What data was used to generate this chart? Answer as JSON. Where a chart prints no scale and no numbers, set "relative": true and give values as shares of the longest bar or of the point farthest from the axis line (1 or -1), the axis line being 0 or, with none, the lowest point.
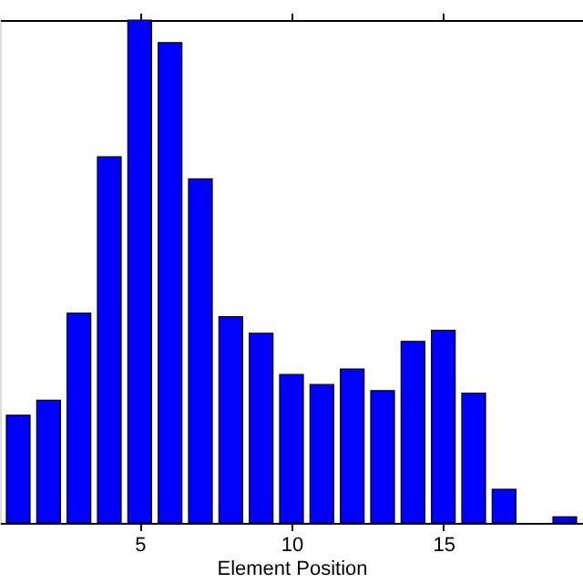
{
  "chart_data": {
    "type": "bar",
    "xlabel": "Element Position",
    "x": [
      1,
      2,
      3,
      4,
      5,
      6,
      7,
      8,
      9,
      10,
      11,
      12,
      13,
      14,
      15,
      16,
      17,
      18,
      19
    ],
    "values": [
      0.214,
      0.244,
      0.417,
      0.728,
      1,
      0.955,
      0.684,
      0.41,
      0.377,
      0.295,
      0.275,
      0.306,
      0.263,
      0.361,
      0.383,
      0.258,
      0.067,
      null,
      0.012
    ],
    "color": "#0000ff",
    "relative": true,
    "xlim": [
      0.4,
      19.6
    ],
    "xticks": [
      5,
      10,
      15
    ],
    "grid": false
  }
}
